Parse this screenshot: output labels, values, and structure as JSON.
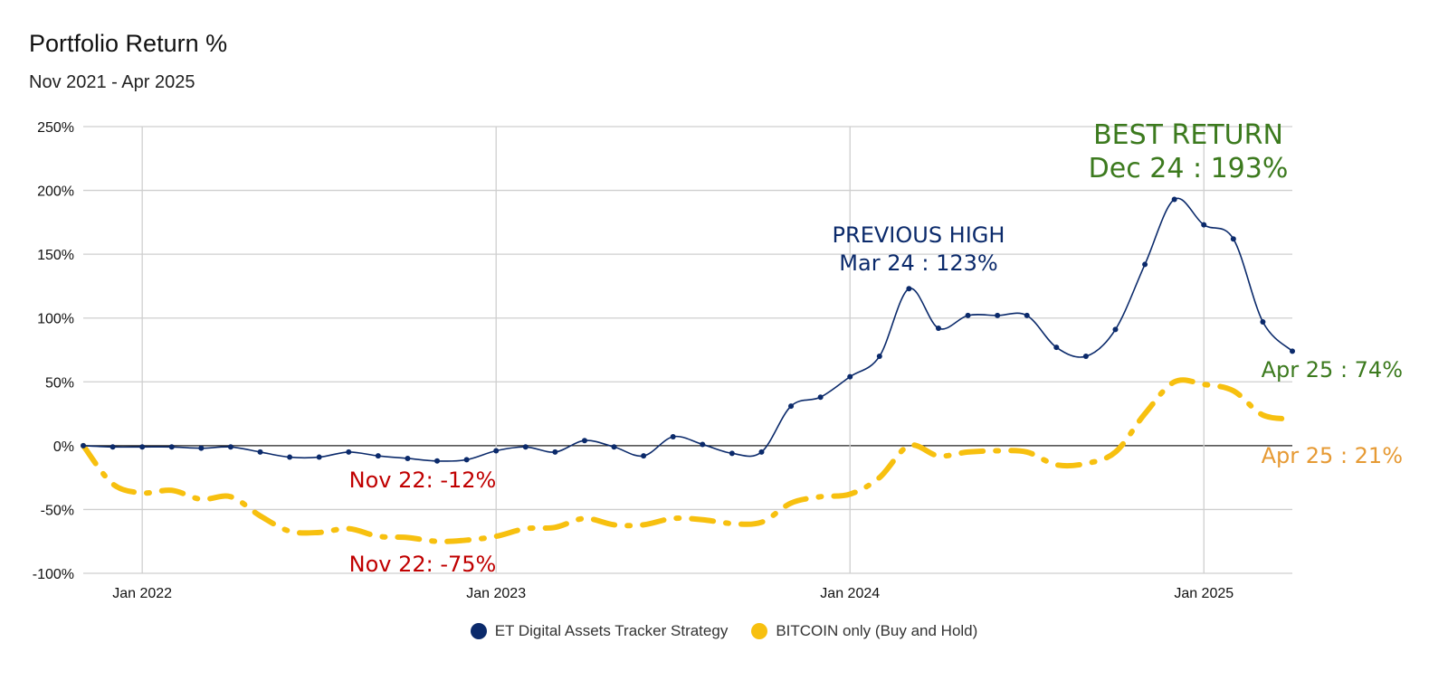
{
  "chart_data": {
    "type": "line",
    "title": "Portfolio Return %",
    "subtitle": "Nov 2021 - Apr 2025",
    "xlabel": "",
    "ylabel": "",
    "ylim": [
      -100,
      250
    ],
    "yticks": [
      {
        "value": -100,
        "label": "-100%"
      },
      {
        "value": -50,
        "label": "-50%"
      },
      {
        "value": 0,
        "label": "0%"
      },
      {
        "value": 50,
        "label": "50%"
      },
      {
        "value": 100,
        "label": "100%"
      },
      {
        "value": 150,
        "label": "150%"
      },
      {
        "value": 200,
        "label": "200%"
      },
      {
        "value": 250,
        "label": "250%"
      }
    ],
    "xticks": [
      {
        "value": "2022-01",
        "label": "Jan 2022"
      },
      {
        "value": "2023-01",
        "label": "Jan 2023"
      },
      {
        "value": "2024-01",
        "label": "Jan 2024"
      },
      {
        "value": "2025-01",
        "label": "Jan 2025"
      }
    ],
    "x": [
      "2021-11",
      "2021-12",
      "2022-01",
      "2022-02",
      "2022-03",
      "2022-04",
      "2022-05",
      "2022-06",
      "2022-07",
      "2022-08",
      "2022-09",
      "2022-10",
      "2022-11",
      "2022-12",
      "2023-01",
      "2023-02",
      "2023-03",
      "2023-04",
      "2023-05",
      "2023-06",
      "2023-07",
      "2023-08",
      "2023-09",
      "2023-10",
      "2023-11",
      "2023-12",
      "2024-01",
      "2024-02",
      "2024-03",
      "2024-04",
      "2024-05",
      "2024-06",
      "2024-07",
      "2024-08",
      "2024-09",
      "2024-10",
      "2024-11",
      "2024-12",
      "2025-01",
      "2025-02",
      "2025-03",
      "2025-04"
    ],
    "grid": true,
    "legend_position": "bottom",
    "series": [
      {
        "name": "ET Digital Assets Tracker Strategy",
        "color": "#0b2a6b",
        "style": "solid",
        "markers": true,
        "values": [
          0,
          -1,
          -1,
          -1,
          -2,
          -1,
          -5,
          -9,
          -9,
          -5,
          -8,
          -10,
          -12,
          -11,
          -4,
          -1,
          -5,
          4,
          -1,
          -8,
          7,
          1,
          -6,
          -5,
          31,
          38,
          54,
          70,
          123,
          92,
          102,
          102,
          102,
          77,
          70,
          91,
          142,
          193,
          173,
          162,
          97,
          74
        ]
      },
      {
        "name": "BITCOIN only (Buy and Hold)",
        "color": "#f7c00f",
        "style": "dashdot",
        "markers": false,
        "values": [
          0,
          -30,
          -37,
          -35,
          -42,
          -40,
          -55,
          -67,
          -68,
          -65,
          -71,
          -72,
          -75,
          -74,
          -71,
          -65,
          -64,
          -57,
          -62,
          -62,
          -57,
          -58,
          -61,
          -60,
          -45,
          -40,
          -38,
          -25,
          0,
          -8,
          -5,
          -4,
          -5,
          -15,
          -14,
          -5,
          25,
          50,
          48,
          43,
          24,
          21
        ]
      }
    ],
    "annotations": [
      {
        "lines": [
          "BEST RETURN",
          "Dec 24 : 193%"
        ],
        "color": "#3c7a1e"
      },
      {
        "lines": [
          "PREVIOUS HIGH",
          "Mar 24 : 123%"
        ],
        "color": "#0b2a6b"
      },
      {
        "lines": [
          "Apr 25 : 74%"
        ],
        "color": "#3c7a1e"
      },
      {
        "lines": [
          "Apr 25 : 21%"
        ],
        "color": "#e69a34"
      },
      {
        "lines": [
          "Nov 22: -12%"
        ],
        "color": "#c00000"
      },
      {
        "lines": [
          "Nov 22: -75%"
        ],
        "color": "#c00000"
      }
    ]
  }
}
